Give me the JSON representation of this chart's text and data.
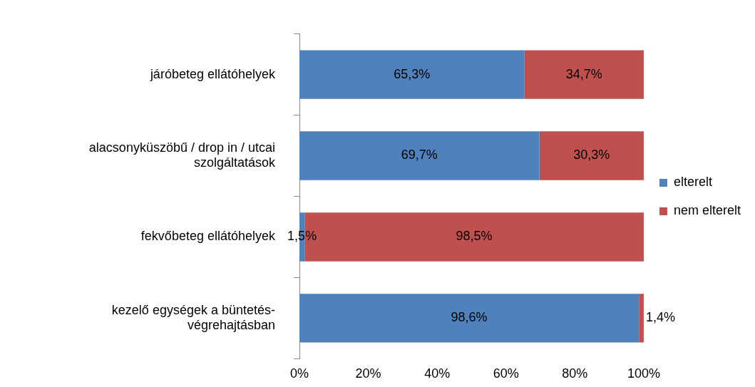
{
  "chart_data": {
    "type": "bar",
    "orientation": "horizontal",
    "stacked": true,
    "categories": [
      "járóbeteg ellátóhelyek",
      "alacsonyküszöbű / drop in / utcai\nszolgáltatások",
      "fekvőbeteg ellátóhelyek",
      "kezelő egységek a büntetés-\nvégrehajtásban"
    ],
    "series": [
      {
        "name": "elterelt",
        "color": "#4f81bd",
        "values": [
          65.3,
          69.7,
          1.5,
          98.6
        ],
        "value_labels": [
          "65,3%",
          "69,7%",
          "1,5%",
          "98,6%"
        ]
      },
      {
        "name": "nem elterelt",
        "color": "#c0504d",
        "values": [
          34.7,
          30.3,
          98.5,
          1.4
        ],
        "value_labels": [
          "34,7%",
          "30,3%",
          "98,5%",
          "1,4%"
        ]
      }
    ],
    "xlim": [
      0,
      100
    ],
    "xticks": [
      {
        "value": 0,
        "label": "0%"
      },
      {
        "value": 20,
        "label": "20%"
      },
      {
        "value": 40,
        "label": "40%"
      },
      {
        "value": 60,
        "label": "60%"
      },
      {
        "value": 80,
        "label": "80%"
      },
      {
        "value": 100,
        "label": "100%"
      }
    ],
    "legend": "right"
  }
}
